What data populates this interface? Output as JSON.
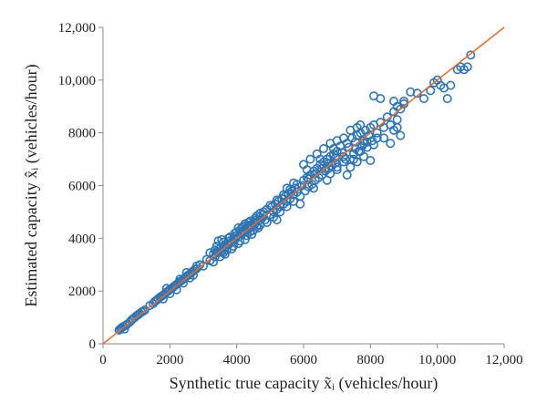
{
  "chart_data": {
    "type": "scatter",
    "xlabel": "Synthetic true capacity x̃ᵢ (vehicles/hour)",
    "ylabel": "Estimated capacity x̂ᵢ (vehicles/hour)",
    "xlim": [
      0,
      12000
    ],
    "ylim": [
      0,
      12000
    ],
    "x_ticks": [
      "0",
      "2000",
      "4000",
      "6000",
      "8000",
      "10,000",
      "12,000"
    ],
    "y_ticks": [
      "0",
      "2000",
      "4000",
      "6000",
      "8000",
      "10,000",
      "12,000"
    ],
    "grid": false,
    "legend": "none",
    "series": [
      {
        "marker": "open-circle",
        "color": "#2e75b6",
        "points": [
          [
            480,
            520
          ],
          [
            520,
            560
          ],
          [
            560,
            610
          ],
          [
            600,
            650
          ],
          [
            640,
            560
          ],
          [
            680,
            700
          ],
          [
            720,
            740
          ],
          [
            800,
            820
          ],
          [
            850,
            900
          ],
          [
            900,
            950
          ],
          [
            950,
            1000
          ],
          [
            1000,
            1060
          ],
          [
            1050,
            1100
          ],
          [
            1100,
            1150
          ],
          [
            1150,
            1200
          ],
          [
            1200,
            1230
          ],
          [
            1250,
            1280
          ],
          [
            1400,
            1450
          ],
          [
            1500,
            1520
          ],
          [
            1550,
            1600
          ],
          [
            1600,
            1650
          ],
          [
            1650,
            1700
          ],
          [
            1700,
            1760
          ],
          [
            1750,
            1800
          ],
          [
            1800,
            1850
          ],
          [
            1850,
            1900
          ],
          [
            1900,
            1960
          ],
          [
            1950,
            2000
          ],
          [
            2000,
            2060
          ],
          [
            2050,
            2100
          ],
          [
            2100,
            2150
          ],
          [
            2150,
            2200
          ],
          [
            2200,
            2250
          ],
          [
            2250,
            2300
          ],
          [
            2300,
            2360
          ],
          [
            2350,
            2400
          ],
          [
            2400,
            2450
          ],
          [
            2450,
            2500
          ],
          [
            2500,
            2560
          ],
          [
            2550,
            2600
          ],
          [
            2600,
            2650
          ],
          [
            2650,
            2700
          ],
          [
            2700,
            2760
          ],
          [
            2750,
            2820
          ],
          [
            2800,
            2850
          ],
          [
            1800,
            1700
          ],
          [
            1900,
            2100
          ],
          [
            2000,
            1900
          ],
          [
            2200,
            2050
          ],
          [
            2300,
            2450
          ],
          [
            2400,
            2300
          ],
          [
            2500,
            2700
          ],
          [
            2600,
            2500
          ],
          [
            2700,
            2600
          ],
          [
            2800,
            2950
          ],
          [
            2900,
            3000
          ],
          [
            3000,
            2950
          ],
          [
            3100,
            3200
          ],
          [
            3200,
            3150
          ],
          [
            3300,
            3400
          ],
          [
            3350,
            3300
          ],
          [
            3400,
            3500
          ],
          [
            3450,
            3450
          ],
          [
            3500,
            3600
          ],
          [
            3550,
            3500
          ],
          [
            3600,
            3700
          ],
          [
            3650,
            3650
          ],
          [
            3700,
            3800
          ],
          [
            3750,
            3750
          ],
          [
            3800,
            3900
          ],
          [
            3850,
            3850
          ],
          [
            3900,
            4000
          ],
          [
            3950,
            3950
          ],
          [
            4000,
            4100
          ],
          [
            4050,
            4050
          ],
          [
            4100,
            4200
          ],
          [
            4150,
            4150
          ],
          [
            4200,
            4300
          ],
          [
            4250,
            4250
          ],
          [
            4300,
            4400
          ],
          [
            4350,
            4350
          ],
          [
            4400,
            4500
          ],
          [
            4450,
            4450
          ],
          [
            4500,
            4600
          ],
          [
            4550,
            4550
          ],
          [
            4600,
            4700
          ],
          [
            4650,
            4650
          ],
          [
            4700,
            4800
          ],
          [
            4750,
            4750
          ],
          [
            4800,
            4900
          ],
          [
            3300,
            3100
          ],
          [
            3400,
            3700
          ],
          [
            3500,
            3300
          ],
          [
            3600,
            3850
          ],
          [
            3700,
            3550
          ],
          [
            3800,
            4050
          ],
          [
            3900,
            3700
          ],
          [
            4000,
            4250
          ],
          [
            4100,
            3900
          ],
          [
            4200,
            4450
          ],
          [
            4300,
            4100
          ],
          [
            4400,
            4650
          ],
          [
            4500,
            4300
          ],
          [
            4600,
            4850
          ],
          [
            4700,
            4500
          ],
          [
            4800,
            5000
          ],
          [
            3450,
            3900
          ],
          [
            3550,
            3950
          ],
          [
            3650,
            3400
          ],
          [
            4050,
            3800
          ],
          [
            4150,
            4400
          ],
          [
            4250,
            3950
          ],
          [
            4350,
            4600
          ],
          [
            4450,
            4150
          ],
          [
            4550,
            4750
          ],
          [
            4650,
            4400
          ],
          [
            3200,
            3450
          ],
          [
            3350,
            3550
          ],
          [
            3600,
            3450
          ],
          [
            3750,
            4000
          ],
          [
            3850,
            3600
          ],
          [
            3950,
            4200
          ],
          [
            4050,
            4400
          ],
          [
            4250,
            4550
          ],
          [
            4400,
            4250
          ],
          [
            4600,
            4450
          ],
          [
            4700,
            4950
          ],
          [
            4850,
            4700
          ],
          [
            4900,
            5100
          ],
          [
            5000,
            4900
          ],
          [
            5050,
            5200
          ],
          [
            5100,
            5000
          ],
          [
            5150,
            5300
          ],
          [
            5200,
            5100
          ],
          [
            5250,
            5400
          ],
          [
            5300,
            5200
          ],
          [
            5350,
            5500
          ],
          [
            5400,
            5300
          ],
          [
            5450,
            5600
          ],
          [
            5500,
            5400
          ],
          [
            5550,
            5700
          ],
          [
            5600,
            5500
          ],
          [
            5650,
            5800
          ],
          [
            5700,
            5650
          ],
          [
            5750,
            5900
          ],
          [
            5800,
            5750
          ],
          [
            4900,
            4600
          ],
          [
            5000,
            5250
          ],
          [
            5100,
            4800
          ],
          [
            5200,
            5450
          ],
          [
            5300,
            5000
          ],
          [
            5400,
            5650
          ],
          [
            5500,
            5200
          ],
          [
            5600,
            5850
          ],
          [
            5700,
            5400
          ],
          [
            5800,
            6050
          ],
          [
            5900,
            5600
          ],
          [
            6000,
            6200
          ],
          [
            6050,
            5800
          ],
          [
            6100,
            6300
          ],
          [
            6150,
            5950
          ],
          [
            6200,
            6400
          ],
          [
            6250,
            6050
          ],
          [
            6300,
            6550
          ],
          [
            6350,
            6200
          ],
          [
            6400,
            6650
          ],
          [
            6450,
            6300
          ],
          [
            6500,
            6800
          ],
          [
            6550,
            6400
          ],
          [
            6600,
            6900
          ],
          [
            6650,
            6550
          ],
          [
            6700,
            7000
          ],
          [
            6750,
            6650
          ],
          [
            6800,
            7100
          ],
          [
            6850,
            6750
          ],
          [
            6900,
            7200
          ],
          [
            6950,
            6850
          ],
          [
            7000,
            7300
          ],
          [
            5200,
            4700
          ],
          [
            5500,
            5900
          ],
          [
            5700,
            6100
          ],
          [
            5900,
            5300
          ],
          [
            6100,
            6600
          ],
          [
            6300,
            5900
          ],
          [
            6500,
            7000
          ],
          [
            6700,
            6200
          ],
          [
            6900,
            7400
          ],
          [
            7000,
            6600
          ],
          [
            7100,
            7500
          ],
          [
            7200,
            6900
          ],
          [
            7300,
            7600
          ],
          [
            7400,
            7000
          ],
          [
            7450,
            7800
          ],
          [
            7500,
            7200
          ],
          [
            7550,
            7400
          ],
          [
            7600,
            7900
          ],
          [
            7650,
            7300
          ],
          [
            7700,
            8000
          ],
          [
            7750,
            7500
          ],
          [
            7800,
            7700
          ],
          [
            7850,
            8100
          ],
          [
            7900,
            7450
          ],
          [
            7950,
            7900
          ],
          [
            8000,
            8200
          ],
          [
            8050,
            7700
          ],
          [
            8100,
            8300
          ],
          [
            8200,
            7800
          ],
          [
            5950,
            6000
          ],
          [
            6150,
            6250
          ],
          [
            6350,
            6450
          ],
          [
            6550,
            6650
          ],
          [
            6750,
            6850
          ],
          [
            6950,
            7050
          ],
          [
            7150,
            7250
          ],
          [
            7250,
            7000
          ],
          [
            7350,
            7450
          ],
          [
            7550,
            7650
          ],
          [
            7700,
            7300
          ],
          [
            7800,
            7600
          ],
          [
            6000,
            6800
          ],
          [
            6200,
            7000
          ],
          [
            6400,
            7200
          ],
          [
            6600,
            7400
          ],
          [
            6800,
            7600
          ],
          [
            7000,
            7700
          ],
          [
            7200,
            7800
          ],
          [
            7400,
            8100
          ],
          [
            7600,
            8200
          ],
          [
            7700,
            8300
          ],
          [
            6800,
            6450
          ],
          [
            7000,
            6700
          ],
          [
            7200,
            7100
          ],
          [
            7500,
            7000
          ],
          [
            7800,
            7100
          ],
          [
            8000,
            6950
          ],
          [
            7300,
            6400
          ],
          [
            7900,
            7650
          ],
          [
            7400,
            6700
          ],
          [
            7600,
            6900
          ],
          [
            8100,
            7550
          ],
          [
            8200,
            8000
          ],
          [
            8300,
            8400
          ],
          [
            8400,
            8200
          ],
          [
            8500,
            8600
          ],
          [
            8600,
            8300
          ],
          [
            8700,
            8800
          ],
          [
            8800,
            8500
          ],
          [
            8900,
            8900
          ],
          [
            9000,
            9100
          ],
          [
            8700,
            8100
          ],
          [
            8900,
            7900
          ],
          [
            8800,
            8200
          ],
          [
            8600,
            7600
          ],
          [
            8400,
            7800
          ],
          [
            8100,
            9400
          ],
          [
            8300,
            9300
          ],
          [
            8700,
            9200
          ],
          [
            8800,
            9000
          ],
          [
            9000,
            9200
          ],
          [
            9200,
            9550
          ],
          [
            9400,
            9500
          ],
          [
            9600,
            9300
          ],
          [
            9800,
            9600
          ],
          [
            9900,
            9900
          ],
          [
            10000,
            10000
          ],
          [
            10100,
            9800
          ],
          [
            10200,
            9700
          ],
          [
            10400,
            9800
          ],
          [
            10300,
            9300
          ],
          [
            10600,
            10400
          ],
          [
            10700,
            10500
          ],
          [
            10800,
            10400
          ],
          [
            10900,
            10500
          ],
          [
            11000,
            10950
          ]
        ]
      },
      {
        "type": "line",
        "color": "#e36c2c",
        "points": [
          [
            0,
            0
          ],
          [
            12000,
            12000
          ]
        ]
      }
    ]
  }
}
